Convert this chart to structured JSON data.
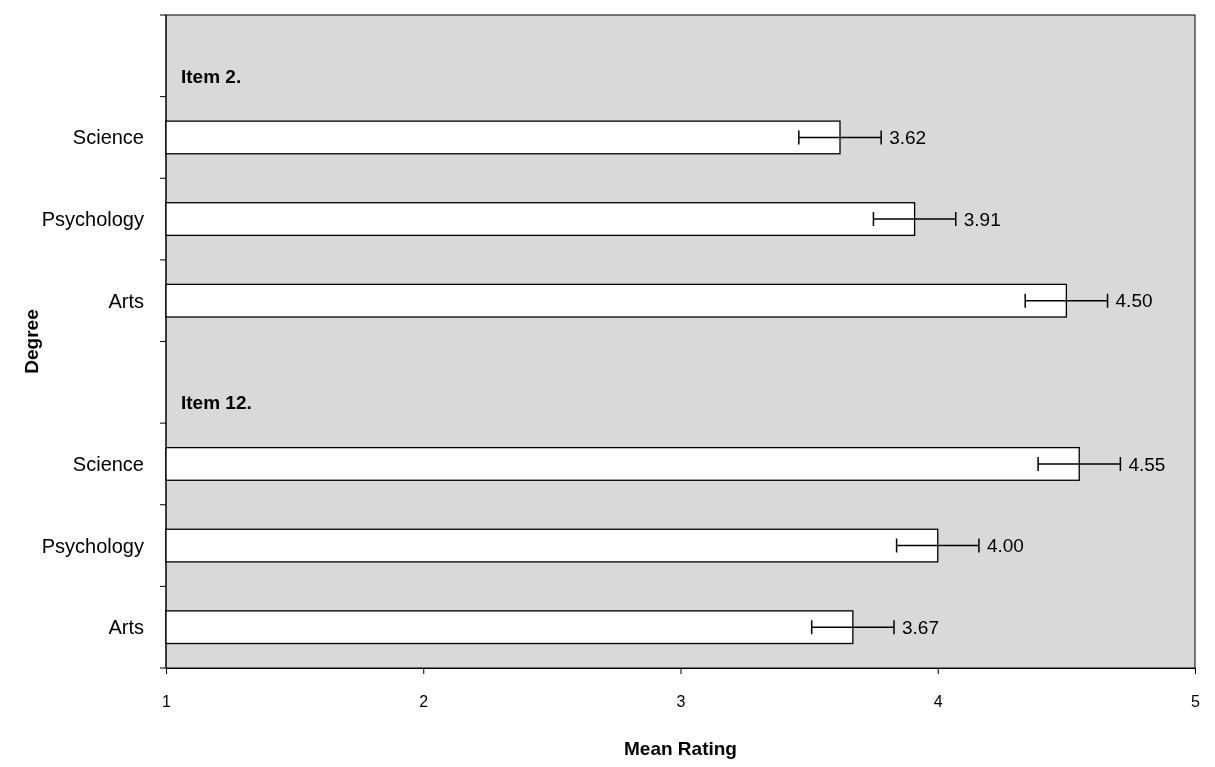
{
  "chart_data": {
    "type": "bar",
    "orientation": "horizontal",
    "xlabel": "Mean Rating",
    "ylabel": "Degree",
    "categories": [
      null,
      "Science",
      "Psychology",
      "Arts",
      null,
      "Science",
      "Psychology",
      "Arts"
    ],
    "values": [
      null,
      3.62,
      3.91,
      4.5,
      null,
      4.55,
      4.0,
      3.67
    ],
    "errors": [
      null,
      0.16,
      0.16,
      0.16,
      null,
      0.16,
      0.16,
      0.16
    ],
    "value_labels": [
      null,
      "3.62",
      "3.91",
      "4.50",
      null,
      "4.55",
      "4.00",
      "3.67"
    ],
    "color": "#ffffff",
    "xlim": [
      1,
      5
    ],
    "xticks": [
      1,
      2,
      3,
      4,
      5
    ],
    "annotations": [
      "Item 2.",
      "Item 12."
    ]
  }
}
